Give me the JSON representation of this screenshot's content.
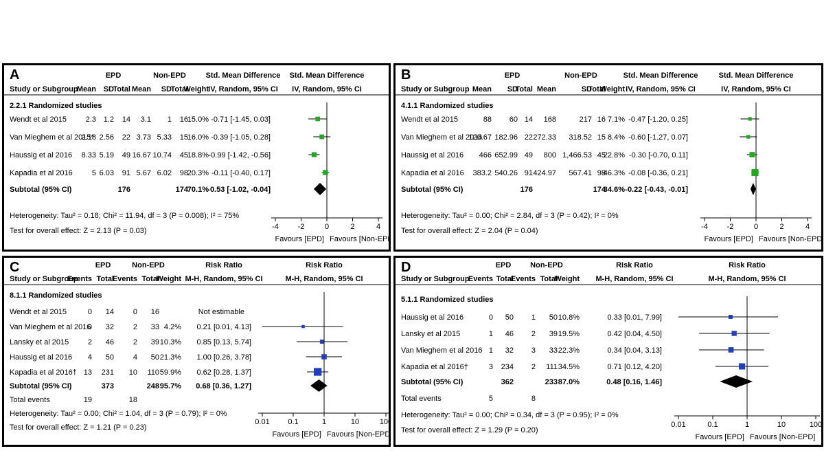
{
  "chart_data": [
    {
      "type": "forest",
      "panel_label": "A",
      "measure_header": "Std. Mean Difference",
      "method": "IV, Random, 95% CI",
      "group1": "EPD",
      "group2": "Non-EPD",
      "col_first": "Study or Subgroup",
      "cols": [
        "Mean",
        "SD",
        "Total",
        "Mean",
        "SD",
        "Total",
        "Weight"
      ],
      "subgroup": "2.2.1 Randomized studies",
      "studies": [
        {
          "name": "Wendt et al 2015",
          "vals": [
            "2.3",
            "1.2",
            "14",
            "3.1",
            "1",
            "16",
            "15.0%"
          ],
          "est_text": "-0.71 [-1.45, 0.03]",
          "est": -0.71,
          "lo": -1.45,
          "hi": 0.03,
          "weight": 15.0
        },
        {
          "name": "Van Mieghem et al 2015*",
          "vals": [
            "2.18",
            "2.56",
            "22",
            "3.73",
            "5.33",
            "15",
            "16.0%"
          ],
          "est_text": "-0.39 [-1.05, 0.28]",
          "est": -0.39,
          "lo": -1.05,
          "hi": 0.28,
          "weight": 16.0
        },
        {
          "name": "Haussig et al 2016",
          "vals": [
            "8.33",
            "5.19",
            "49",
            "16.67",
            "10.74",
            "45",
            "18.8%"
          ],
          "est_text": "-0.99 [-1.42, -0.56]",
          "est": -0.99,
          "lo": -1.42,
          "hi": -0.56,
          "weight": 18.8
        },
        {
          "name": "Kapadia et al 2016",
          "vals": [
            "5",
            "6.03",
            "91",
            "5.67",
            "6.02",
            "98",
            "20.3%"
          ],
          "est_text": "-0.11 [-0.40, 0.17]",
          "est": -0.11,
          "lo": -0.4,
          "hi": 0.17,
          "weight": 20.3
        }
      ],
      "subtotal": {
        "label": "Subtotal (95% CI)",
        "total1": "176",
        "total2": "174",
        "weight": "70.1%",
        "est_text": "-0.53 [-1.02, -0.04]",
        "est": -0.53,
        "lo": -1.02,
        "hi": -0.04
      },
      "heterogeneity": "Heterogeneity: Tau² = 0.18; Chi² = 11.94, df = 3 (P = 0.008); I² = 75%",
      "overall": "Test for overall effect: Z = 2.13 (P = 0.03)",
      "scale": "linear",
      "xlim": [
        -4,
        4
      ],
      "ticks": [
        -4,
        -2,
        0,
        2,
        4
      ],
      "tick_labels": [
        "-4",
        "-2",
        "0",
        "2",
        "4"
      ],
      "favours_left": "Favours [EPD]",
      "favours_right": "Favours [Non-EPD]",
      "marker_color": "#22aa22"
    },
    {
      "type": "forest",
      "panel_label": "B",
      "measure_header": "Std. Mean Difference",
      "method": "IV, Random, 95% CI",
      "group1": "EPD",
      "group2": "Non-EPD",
      "col_first": "Study or Subgroup",
      "cols": [
        "Mean",
        "SD",
        "Total",
        "Mean",
        "SD",
        "Total",
        "Weight"
      ],
      "subgroup": "4.1.1 Randomized studies",
      "studies": [
        {
          "name": "Wendt et al 2015",
          "vals": [
            "88",
            "60",
            "14",
            "168",
            "217",
            "16",
            "7.1%"
          ],
          "est_text": "-0.47 [-1.20, 0.25]",
          "est": -0.47,
          "lo": -1.2,
          "hi": 0.25,
          "weight": 7.1
        },
        {
          "name": "Van Mieghem et al 2016",
          "vals": [
            "120.67",
            "182.96",
            "22",
            "272.33",
            "318.52",
            "15",
            "8.4%"
          ],
          "est_text": "-0.60 [-1.27, 0.07]",
          "est": -0.6,
          "lo": -1.27,
          "hi": 0.07,
          "weight": 8.4
        },
        {
          "name": "Haussig et al 2016",
          "vals": [
            "466",
            "652.99",
            "49",
            "800",
            "1,466.53",
            "45",
            "22.8%"
          ],
          "est_text": "-0.30 [-0.70, 0.11]",
          "est": -0.3,
          "lo": -0.7,
          "hi": 0.11,
          "weight": 22.8
        },
        {
          "name": "Kapadia et al 2016",
          "vals": [
            "383.2",
            "540.26",
            "91",
            "424.97",
            "567.41",
            "98",
            "46.3%"
          ],
          "est_text": "-0.08 [-0.36, 0.21]",
          "est": -0.08,
          "lo": -0.36,
          "hi": 0.21,
          "weight": 46.3
        }
      ],
      "subtotal": {
        "label": "Subtotal (95% CI)",
        "total1": "176",
        "total2": "174",
        "weight": "84.6%",
        "est_text": "-0.22 [-0.43, -0.01]",
        "est": -0.22,
        "lo": -0.43,
        "hi": -0.01
      },
      "heterogeneity": "Heterogeneity: Tau² = 0.00; Chi² = 2.84, df = 3 (P = 0.42); I² = 0%",
      "overall": "Test for overall effect: Z = 2.04 (P = 0.04)",
      "scale": "linear",
      "xlim": [
        -4,
        4
      ],
      "ticks": [
        -4,
        -2,
        0,
        2,
        4
      ],
      "tick_labels": [
        "-4",
        "-2",
        "0",
        "2",
        "4"
      ],
      "favours_left": "Favours [EPD]",
      "favours_right": "Favours [Non-EPD]",
      "marker_color": "#22aa22"
    },
    {
      "type": "forest",
      "panel_label": "C",
      "measure_header": "Risk Ratio",
      "method": "M-H, Random, 95% CI",
      "group1": "EPD",
      "group2": "Non-EPD",
      "col_first": "Study or Subgroup",
      "cols": [
        "Events",
        "Total",
        "Events",
        "Total",
        "Weight"
      ],
      "subgroup": "8.1.1 Randomized studies",
      "studies": [
        {
          "name": "Wendt et al 2015",
          "vals": [
            "0",
            "14",
            "0",
            "16",
            ""
          ],
          "est_text": "Not estimable",
          "est": null,
          "lo": null,
          "hi": null,
          "weight": 0
        },
        {
          "name": "Van Mieghem et al 2016",
          "vals": [
            "0",
            "32",
            "2",
            "33",
            "4.2%"
          ],
          "est_text": "0.21 [0.01, 4.13]",
          "est": 0.21,
          "lo": 0.01,
          "hi": 4.13,
          "weight": 4.2
        },
        {
          "name": "Lansky et al 2015",
          "vals": [
            "2",
            "46",
            "2",
            "39",
            "10.3%"
          ],
          "est_text": "0.85 [0.13, 5.74]",
          "est": 0.85,
          "lo": 0.13,
          "hi": 5.74,
          "weight": 10.3
        },
        {
          "name": "Haussig et al 2016",
          "vals": [
            "4",
            "50",
            "4",
            "50",
            "21.3%"
          ],
          "est_text": "1.00 [0.26, 3.78]",
          "est": 1.0,
          "lo": 0.26,
          "hi": 3.78,
          "weight": 21.3
        },
        {
          "name": "Kapadia et al 2016†",
          "vals": [
            "13",
            "231",
            "10",
            "110",
            "59.9%"
          ],
          "est_text": "0.62 [0.28, 1.37]",
          "est": 0.62,
          "lo": 0.28,
          "hi": 1.37,
          "weight": 59.9
        }
      ],
      "subtotal": {
        "label": "Subtotal (95% CI)",
        "total1": "373",
        "total2": "248",
        "weight": "95.7%",
        "est_text": "0.68 [0.36, 1.27]",
        "est": 0.68,
        "lo": 0.36,
        "hi": 1.27
      },
      "total_events": {
        "label": "Total events",
        "e1": "19",
        "e2": "18"
      },
      "heterogeneity": "Heterogeneity: Tau² = 0.00; Chi² = 1.04, df = 3 (P = 0.79); I² = 0%",
      "overall": "Test for overall effect: Z = 1.21 (P = 0.23)",
      "scale": "log",
      "xlim": [
        0.01,
        100
      ],
      "ticks": [
        0.01,
        0.1,
        1,
        10,
        100
      ],
      "tick_labels": [
        "0.01",
        "0.1",
        "1",
        "10",
        "100"
      ],
      "favours_left": "Favours [EPD]",
      "favours_right": "Favours [Non-EPD]",
      "marker_color": "#1f3fbf"
    },
    {
      "type": "forest",
      "panel_label": "D",
      "measure_header": "Risk Ratio",
      "method": "M-H, Random, 95% CI",
      "group1": "EPD",
      "group2": "Non-EPD",
      "col_first": "Study or Subgroup",
      "cols": [
        "Events",
        "Total",
        "Events",
        "Total",
        "Weight"
      ],
      "subgroup": "5.1.1 Randomized studies",
      "studies": [
        {
          "name": "Haussig et al 2016",
          "vals": [
            "0",
            "50",
            "1",
            "50",
            "10.8%"
          ],
          "est_text": "0.33 [0.01, 7.99]",
          "est": 0.33,
          "lo": 0.01,
          "hi": 7.99,
          "weight": 10.8
        },
        {
          "name": "Lansky et al 2015",
          "vals": [
            "1",
            "46",
            "2",
            "39",
            "19.5%"
          ],
          "est_text": "0.42 [0.04, 4.50]",
          "est": 0.42,
          "lo": 0.04,
          "hi": 4.5,
          "weight": 19.5
        },
        {
          "name": "Van Mieghem et al 2016",
          "vals": [
            "1",
            "32",
            "3",
            "33",
            "22.3%"
          ],
          "est_text": "0.34 [0.04, 3.13]",
          "est": 0.34,
          "lo": 0.04,
          "hi": 3.13,
          "weight": 22.3
        },
        {
          "name": "Kapadia et al 2016†",
          "vals": [
            "3",
            "234",
            "2",
            "111",
            "34.5%"
          ],
          "est_text": "0.71 [0.12, 4.20]",
          "est": 0.71,
          "lo": 0.12,
          "hi": 4.2,
          "weight": 34.5
        }
      ],
      "subtotal": {
        "label": "Subtotal (95% CI)",
        "total1": "362",
        "total2": "233",
        "weight": "87.0%",
        "est_text": "0.48 [0.16, 1.46]",
        "est": 0.48,
        "lo": 0.16,
        "hi": 1.46
      },
      "total_events": {
        "label": "Total events",
        "e1": "5",
        "e2": "8"
      },
      "heterogeneity": "Heterogeneity: Tau² = 0.00; Chi² = 0.34, df = 3 (P = 0.95); I² = 0%",
      "overall": "Test for overall effect: Z = 1.29 (P = 0.20)",
      "scale": "log",
      "xlim": [
        0.01,
        100
      ],
      "ticks": [
        0.01,
        0.1,
        1,
        10,
        100
      ],
      "tick_labels": [
        "0.01",
        "0.1",
        "1",
        "10",
        "100"
      ],
      "favours_left": "Favours [EPD]",
      "favours_right": "Favours [Non-EPD]",
      "marker_color": "#1f3fbf"
    }
  ]
}
